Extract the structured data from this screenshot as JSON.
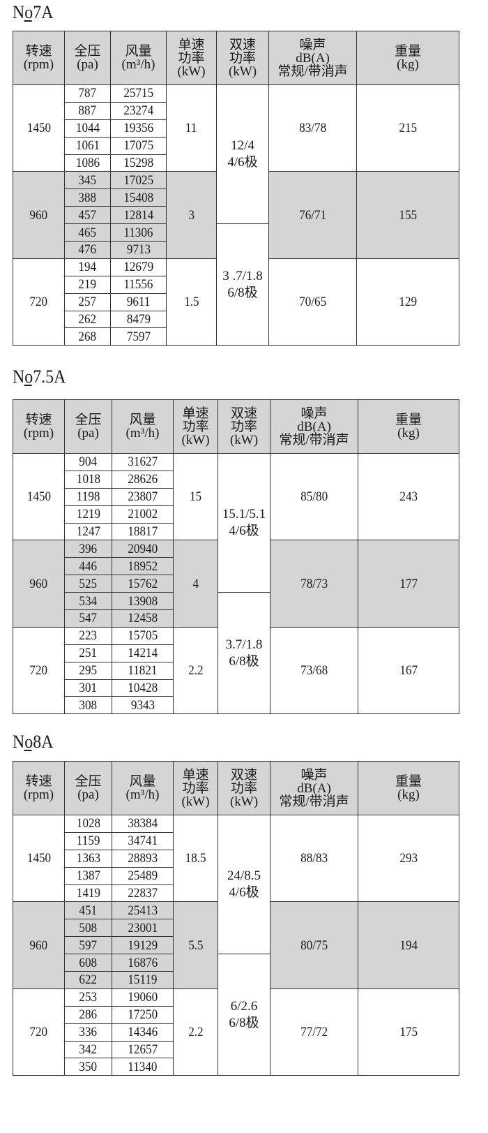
{
  "headers": [
    "转速\n(rpm)",
    "全压\n(pa)",
    "风量\n(m³/h)",
    "单速\n功率\n(kW)",
    "双速\n功率\n(kW)",
    "噪声\ndB(A)\n常规/带消声",
    "重量\n(kg)"
  ],
  "tables": [
    {
      "title": "No7A",
      "groups": [
        {
          "rpm": "1450",
          "pressure": [
            "787",
            "887",
            "1044",
            "1061",
            "1086"
          ],
          "flow": [
            "25715",
            "23274",
            "19356",
            "17075",
            "15298"
          ],
          "single_power": "11",
          "noise": "83/78",
          "weight": "215"
        },
        {
          "rpm": "960",
          "pressure": [
            "345",
            "388",
            "457",
            "465",
            "476"
          ],
          "flow": [
            "17025",
            "15408",
            "12814",
            "11306",
            "9713"
          ],
          "single_power": "3",
          "noise": "76/71",
          "weight": "155"
        },
        {
          "rpm": "720",
          "pressure": [
            "194",
            "219",
            "257",
            "262",
            "268"
          ],
          "flow": [
            "12679",
            "11556",
            "9611",
            "8479",
            "7597"
          ],
          "single_power": "1.5",
          "noise": "70/65",
          "weight": "129"
        }
      ],
      "dual_power": [
        {
          "value": "12/4",
          "poles": "4/6极"
        },
        {
          "value": "3 .7/1.8",
          "poles": "6/8极"
        }
      ]
    },
    {
      "title": "No7.5A",
      "groups": [
        {
          "rpm": "1450",
          "pressure": [
            "904",
            "1018",
            "1198",
            "1219",
            "1247"
          ],
          "flow": [
            "31627",
            "28626",
            "23807",
            "21002",
            "18817"
          ],
          "single_power": "15",
          "noise": "85/80",
          "weight": "243"
        },
        {
          "rpm": "960",
          "pressure": [
            "396",
            "446",
            "525",
            "534",
            "547"
          ],
          "flow": [
            "20940",
            "18952",
            "15762",
            "13908",
            "12458"
          ],
          "single_power": "4",
          "noise": "78/73",
          "weight": "177"
        },
        {
          "rpm": "720",
          "pressure": [
            "223",
            "251",
            "295",
            "301",
            "308"
          ],
          "flow": [
            "15705",
            "14214",
            "11821",
            "10428",
            "9343"
          ],
          "single_power": "2.2",
          "noise": "73/68",
          "weight": "167"
        }
      ],
      "dual_power": [
        {
          "value": "15.1/5.1",
          "poles": "4/6极"
        },
        {
          "value": "3.7/1.8",
          "poles": "6/8极"
        }
      ]
    },
    {
      "title": "No8A",
      "groups": [
        {
          "rpm": "1450",
          "pressure": [
            "1028",
            "1159",
            "1363",
            "1387",
            "1419"
          ],
          "flow": [
            "38384",
            "34741",
            "28893",
            "25489",
            "22837"
          ],
          "single_power": "18.5",
          "noise": "88/83",
          "weight": "293"
        },
        {
          "rpm": "960",
          "pressure": [
            "451",
            "508",
            "597",
            "608",
            "622"
          ],
          "flow": [
            "25413",
            "23001",
            "19129",
            "16876",
            "15119"
          ],
          "single_power": "5.5",
          "noise": "80/75",
          "weight": "194"
        },
        {
          "rpm": "720",
          "pressure": [
            "253",
            "286",
            "336",
            "342",
            "350"
          ],
          "flow": [
            "19060",
            "17250",
            "14346",
            "12657",
            "11340"
          ],
          "single_power": "2.2",
          "noise": "77/72",
          "weight": "175"
        }
      ],
      "dual_power": [
        {
          "value": "24/8.5",
          "poles": "4/6极"
        },
        {
          "value": "6/2.6",
          "poles": "6/8极"
        }
      ]
    }
  ],
  "colors": {
    "shade": "#d4d5d7",
    "border": "#333333"
  }
}
